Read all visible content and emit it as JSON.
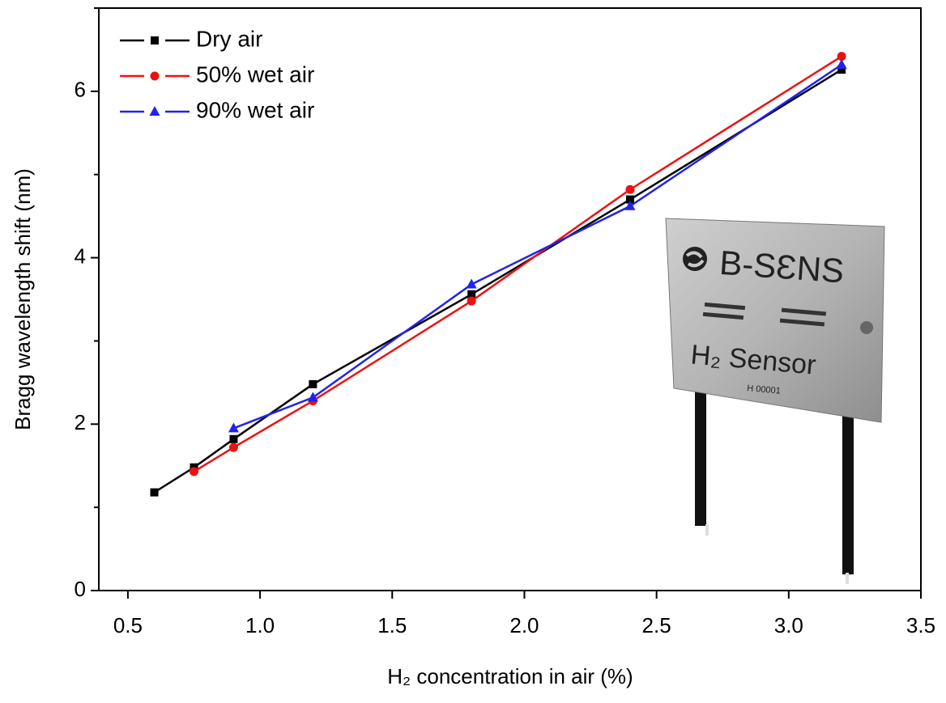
{
  "chart_data": {
    "type": "line",
    "x_label": "H₂ concentration in air (%)",
    "y_label": "Bragg wavelength shift (nm)",
    "xlim": [
      0.39,
      3.5
    ],
    "xticks": [
      {
        "value": 0.5,
        "label": "0.5"
      },
      {
        "value": 1.0,
        "label": "1.0"
      },
      {
        "value": 1.5,
        "label": "1.5"
      },
      {
        "value": 2.0,
        "label": "2.0"
      },
      {
        "value": 2.5,
        "label": "2.5"
      },
      {
        "value": 3.0,
        "label": "3.0"
      },
      {
        "value": 3.5,
        "label": "3.5"
      }
    ],
    "ylim": [
      0,
      7
    ],
    "yticks": [
      0,
      2,
      4,
      6
    ],
    "yminorticks": [
      1,
      3,
      5,
      7
    ],
    "legend": "upper left",
    "series": [
      {
        "name": "Dry air",
        "color": "#000000",
        "marker": "square",
        "x": [
          0.6,
          0.75,
          0.9,
          1.2,
          1.8,
          2.4,
          3.2
        ],
        "values": [
          1.18,
          1.48,
          1.82,
          2.48,
          3.56,
          4.7,
          6.26
        ]
      },
      {
        "name": "50% wet air",
        "color": "#ee1111",
        "marker": "circle",
        "x": [
          0.75,
          0.9,
          1.2,
          1.8,
          2.4,
          3.2
        ],
        "values": [
          1.43,
          1.72,
          2.28,
          3.48,
          4.82,
          6.42
        ]
      },
      {
        "name": "90% wet air",
        "color": "#2222ee",
        "marker": "triangle",
        "x": [
          0.9,
          1.2,
          1.8,
          2.4,
          3.2
        ],
        "values": [
          1.95,
          2.32,
          3.68,
          4.62,
          6.32
        ]
      }
    ]
  },
  "inset": {
    "brand": "B-SƐNS",
    "label": "H₂ Sensor",
    "serial": "H 00001"
  }
}
